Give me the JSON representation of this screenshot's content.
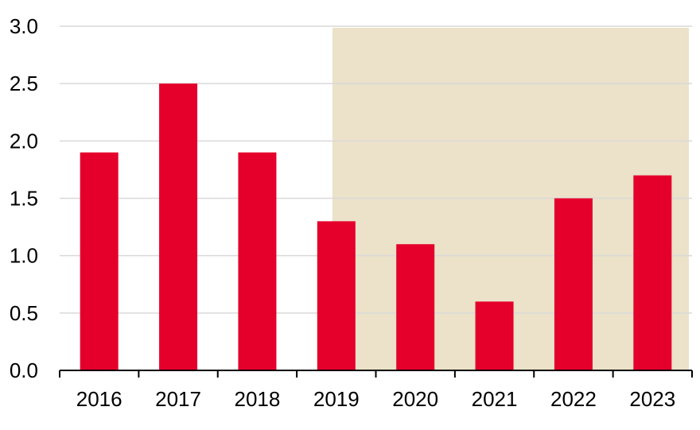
{
  "chart_data": {
    "type": "bar",
    "title": "",
    "xlabel": "",
    "ylabel": "",
    "categories": [
      "2016",
      "2017",
      "2018",
      "2019",
      "2020",
      "2021",
      "2022",
      "2023"
    ],
    "values": [
      1.9,
      2.5,
      1.9,
      1.3,
      1.1,
      0.6,
      1.5,
      1.7
    ],
    "ylim": [
      0,
      3
    ],
    "yticks": [
      "0.0",
      "0.5",
      "1.0",
      "1.5",
      "2.0",
      "2.5",
      "3.0"
    ],
    "grid": true,
    "legend": "none",
    "shaded_range": [
      "2019",
      "2023"
    ],
    "colors": {
      "bar": "#e4002b",
      "shade": "#ebe2c9",
      "grid": "#d9d9d9",
      "axis": "#000000"
    }
  }
}
